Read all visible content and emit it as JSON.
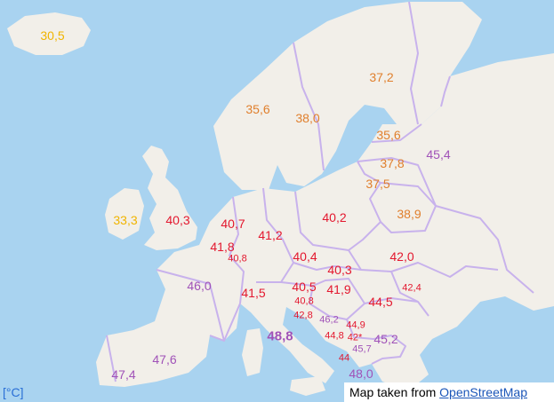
{
  "unit_label": "[°C]",
  "attribution": {
    "prefix": "Map taken from ",
    "link_text": "OpenStreetMap"
  },
  "colors": {
    "sea": "#a9d3f0",
    "land": "#f2efe9",
    "border": "#c8b2ec",
    "yellow": "#f0b400",
    "orange": "#e07f2c",
    "red": "#e3172e",
    "purple": "#a052b8"
  },
  "readings": [
    {
      "id": "iceland",
      "text": "30,5",
      "color": "yellow"
    },
    {
      "id": "ireland",
      "text": "33,3",
      "color": "yellow"
    },
    {
      "id": "uk",
      "text": "40,3",
      "color": "red"
    },
    {
      "id": "norway",
      "text": "35,6",
      "color": "orange"
    },
    {
      "id": "sweden",
      "text": "38,0",
      "color": "orange"
    },
    {
      "id": "finland",
      "text": "37,2",
      "color": "orange"
    },
    {
      "id": "estonia",
      "text": "35,6",
      "color": "orange"
    },
    {
      "id": "latvia",
      "text": "37,8",
      "color": "orange"
    },
    {
      "id": "lithuania",
      "text": "37,5",
      "color": "orange"
    },
    {
      "id": "russia",
      "text": "45,4",
      "color": "purple"
    },
    {
      "id": "belarus",
      "text": "38,9",
      "color": "orange"
    },
    {
      "id": "netherlands",
      "text": "40,7",
      "color": "red"
    },
    {
      "id": "germany",
      "text": "41,2",
      "color": "red"
    },
    {
      "id": "poland",
      "text": "40,2",
      "color": "red"
    },
    {
      "id": "belgium",
      "text": "41,8",
      "color": "red"
    },
    {
      "id": "luxembourg",
      "text": "40,8",
      "color": "red"
    },
    {
      "id": "france",
      "text": "46,0",
      "color": "purple"
    },
    {
      "id": "czechia",
      "text": "40,4",
      "color": "red"
    },
    {
      "id": "slovakia",
      "text": "40,3",
      "color": "red"
    },
    {
      "id": "ukraine",
      "text": "42,0",
      "color": "red"
    },
    {
      "id": "switzerland",
      "text": "41,5",
      "color": "red"
    },
    {
      "id": "austria",
      "text": "40,5",
      "color": "red"
    },
    {
      "id": "hungary",
      "text": "41,9",
      "color": "red"
    },
    {
      "id": "moldova",
      "text": "42,4",
      "color": "red"
    },
    {
      "id": "romania",
      "text": "44,5",
      "color": "red"
    },
    {
      "id": "slovenia",
      "text": "40,8",
      "color": "red"
    },
    {
      "id": "croatia",
      "text": "42,8",
      "color": "red"
    },
    {
      "id": "bosnia",
      "text": "46,2",
      "color": "purple"
    },
    {
      "id": "serbia",
      "text": "44,9",
      "color": "red"
    },
    {
      "id": "montenegro",
      "text": "44,8",
      "color": "red"
    },
    {
      "id": "kosovo",
      "text": "42*",
      "color": "red"
    },
    {
      "id": "bulgaria",
      "text": "45,2",
      "color": "purple"
    },
    {
      "id": "north-macedonia",
      "text": "45,7",
      "color": "purple"
    },
    {
      "id": "italy",
      "text": "48,8",
      "color": "purple"
    },
    {
      "id": "albania",
      "text": "44",
      "color": "red"
    },
    {
      "id": "greece",
      "text": "48,0",
      "color": "purple"
    },
    {
      "id": "spain",
      "text": "47,6",
      "color": "purple"
    },
    {
      "id": "portugal",
      "text": "47,4",
      "color": "purple"
    }
  ]
}
